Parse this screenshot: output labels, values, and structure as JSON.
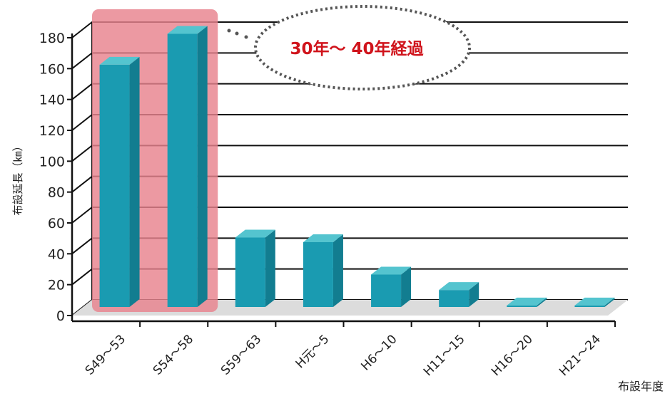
{
  "chart_data": {
    "type": "bar",
    "categories": [
      "S49～53",
      "S54～58",
      "S59～63",
      "H元～5",
      "H6～10",
      "H11～15",
      "H16～20",
      "H21～24"
    ],
    "values": [
      157,
      177,
      45,
      42,
      21,
      11,
      1,
      1
    ],
    "ylim": [
      0,
      180
    ],
    "yticks": [
      0,
      20,
      40,
      60,
      80,
      100,
      120,
      140,
      160,
      180
    ],
    "ylabel": "布設延長（㎞）",
    "xlabel": "布設年度",
    "grid": true,
    "bar_color": "#1a9bb1",
    "highlight": {
      "categories": [
        "S49～53",
        "S54～58"
      ],
      "color": "#e8838d",
      "callout": "30年～ 40年経過",
      "callout_color": "#d0141c"
    }
  }
}
